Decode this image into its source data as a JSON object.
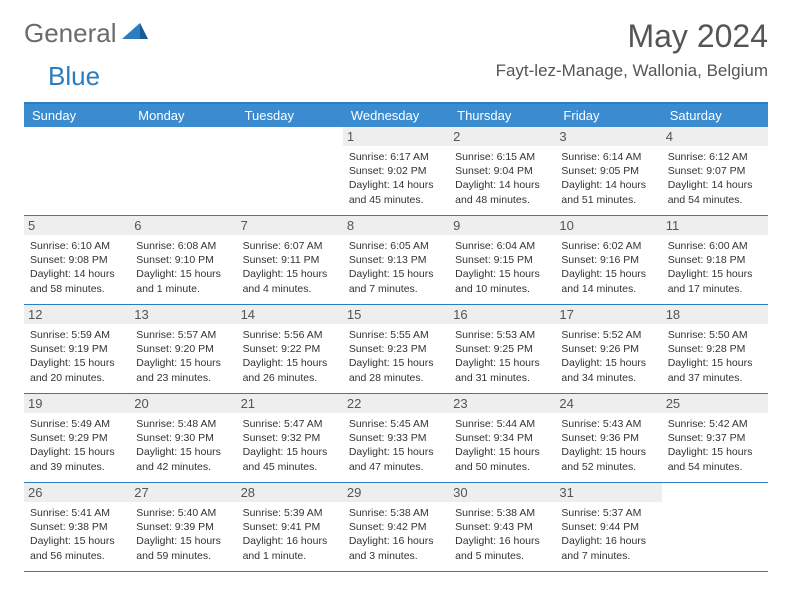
{
  "logo": {
    "text1": "General",
    "text2": "Blue"
  },
  "title": "May 2024",
  "location": "Fayt-lez-Manage, Wallonia, Belgium",
  "colors": {
    "header_blue": "#3b8bd0",
    "rule_blue": "#2b7cc0",
    "daynum_bg": "#eeeeee",
    "text_gray": "#555555",
    "body_text": "#333333",
    "logo_gray": "#6b6b6b"
  },
  "day_names": [
    "Sunday",
    "Monday",
    "Tuesday",
    "Wednesday",
    "Thursday",
    "Friday",
    "Saturday"
  ],
  "weeks": [
    [
      {
        "n": "",
        "lines": []
      },
      {
        "n": "",
        "lines": []
      },
      {
        "n": "",
        "lines": []
      },
      {
        "n": "1",
        "lines": [
          "Sunrise: 6:17 AM",
          "Sunset: 9:02 PM",
          "Daylight: 14 hours and 45 minutes."
        ]
      },
      {
        "n": "2",
        "lines": [
          "Sunrise: 6:15 AM",
          "Sunset: 9:04 PM",
          "Daylight: 14 hours and 48 minutes."
        ]
      },
      {
        "n": "3",
        "lines": [
          "Sunrise: 6:14 AM",
          "Sunset: 9:05 PM",
          "Daylight: 14 hours and 51 minutes."
        ]
      },
      {
        "n": "4",
        "lines": [
          "Sunrise: 6:12 AM",
          "Sunset: 9:07 PM",
          "Daylight: 14 hours and 54 minutes."
        ]
      }
    ],
    [
      {
        "n": "5",
        "lines": [
          "Sunrise: 6:10 AM",
          "Sunset: 9:08 PM",
          "Daylight: 14 hours and 58 minutes."
        ]
      },
      {
        "n": "6",
        "lines": [
          "Sunrise: 6:08 AM",
          "Sunset: 9:10 PM",
          "Daylight: 15 hours and 1 minute."
        ]
      },
      {
        "n": "7",
        "lines": [
          "Sunrise: 6:07 AM",
          "Sunset: 9:11 PM",
          "Daylight: 15 hours and 4 minutes."
        ]
      },
      {
        "n": "8",
        "lines": [
          "Sunrise: 6:05 AM",
          "Sunset: 9:13 PM",
          "Daylight: 15 hours and 7 minutes."
        ]
      },
      {
        "n": "9",
        "lines": [
          "Sunrise: 6:04 AM",
          "Sunset: 9:15 PM",
          "Daylight: 15 hours and 10 minutes."
        ]
      },
      {
        "n": "10",
        "lines": [
          "Sunrise: 6:02 AM",
          "Sunset: 9:16 PM",
          "Daylight: 15 hours and 14 minutes."
        ]
      },
      {
        "n": "11",
        "lines": [
          "Sunrise: 6:00 AM",
          "Sunset: 9:18 PM",
          "Daylight: 15 hours and 17 minutes."
        ]
      }
    ],
    [
      {
        "n": "12",
        "lines": [
          "Sunrise: 5:59 AM",
          "Sunset: 9:19 PM",
          "Daylight: 15 hours and 20 minutes."
        ]
      },
      {
        "n": "13",
        "lines": [
          "Sunrise: 5:57 AM",
          "Sunset: 9:20 PM",
          "Daylight: 15 hours and 23 minutes."
        ]
      },
      {
        "n": "14",
        "lines": [
          "Sunrise: 5:56 AM",
          "Sunset: 9:22 PM",
          "Daylight: 15 hours and 26 minutes."
        ]
      },
      {
        "n": "15",
        "lines": [
          "Sunrise: 5:55 AM",
          "Sunset: 9:23 PM",
          "Daylight: 15 hours and 28 minutes."
        ]
      },
      {
        "n": "16",
        "lines": [
          "Sunrise: 5:53 AM",
          "Sunset: 9:25 PM",
          "Daylight: 15 hours and 31 minutes."
        ]
      },
      {
        "n": "17",
        "lines": [
          "Sunrise: 5:52 AM",
          "Sunset: 9:26 PM",
          "Daylight: 15 hours and 34 minutes."
        ]
      },
      {
        "n": "18",
        "lines": [
          "Sunrise: 5:50 AM",
          "Sunset: 9:28 PM",
          "Daylight: 15 hours and 37 minutes."
        ]
      }
    ],
    [
      {
        "n": "19",
        "lines": [
          "Sunrise: 5:49 AM",
          "Sunset: 9:29 PM",
          "Daylight: 15 hours and 39 minutes."
        ]
      },
      {
        "n": "20",
        "lines": [
          "Sunrise: 5:48 AM",
          "Sunset: 9:30 PM",
          "Daylight: 15 hours and 42 minutes."
        ]
      },
      {
        "n": "21",
        "lines": [
          "Sunrise: 5:47 AM",
          "Sunset: 9:32 PM",
          "Daylight: 15 hours and 45 minutes."
        ]
      },
      {
        "n": "22",
        "lines": [
          "Sunrise: 5:45 AM",
          "Sunset: 9:33 PM",
          "Daylight: 15 hours and 47 minutes."
        ]
      },
      {
        "n": "23",
        "lines": [
          "Sunrise: 5:44 AM",
          "Sunset: 9:34 PM",
          "Daylight: 15 hours and 50 minutes."
        ]
      },
      {
        "n": "24",
        "lines": [
          "Sunrise: 5:43 AM",
          "Sunset: 9:36 PM",
          "Daylight: 15 hours and 52 minutes."
        ]
      },
      {
        "n": "25",
        "lines": [
          "Sunrise: 5:42 AM",
          "Sunset: 9:37 PM",
          "Daylight: 15 hours and 54 minutes."
        ]
      }
    ],
    [
      {
        "n": "26",
        "lines": [
          "Sunrise: 5:41 AM",
          "Sunset: 9:38 PM",
          "Daylight: 15 hours and 56 minutes."
        ]
      },
      {
        "n": "27",
        "lines": [
          "Sunrise: 5:40 AM",
          "Sunset: 9:39 PM",
          "Daylight: 15 hours and 59 minutes."
        ]
      },
      {
        "n": "28",
        "lines": [
          "Sunrise: 5:39 AM",
          "Sunset: 9:41 PM",
          "Daylight: 16 hours and 1 minute."
        ]
      },
      {
        "n": "29",
        "lines": [
          "Sunrise: 5:38 AM",
          "Sunset: 9:42 PM",
          "Daylight: 16 hours and 3 minutes."
        ]
      },
      {
        "n": "30",
        "lines": [
          "Sunrise: 5:38 AM",
          "Sunset: 9:43 PM",
          "Daylight: 16 hours and 5 minutes."
        ]
      },
      {
        "n": "31",
        "lines": [
          "Sunrise: 5:37 AM",
          "Sunset: 9:44 PM",
          "Daylight: 16 hours and 7 minutes."
        ]
      },
      {
        "n": "",
        "lines": []
      }
    ]
  ]
}
